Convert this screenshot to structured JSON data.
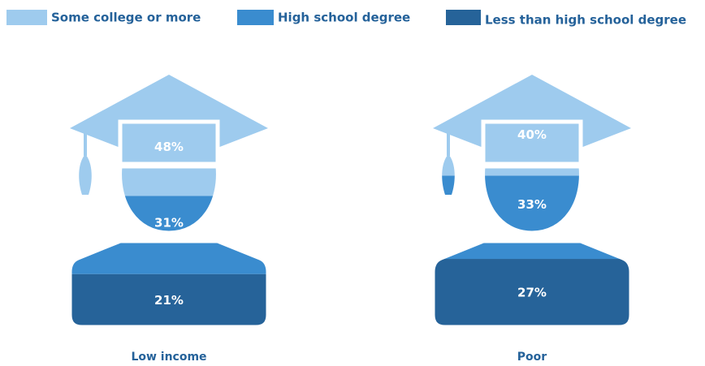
{
  "chart_data": {
    "type": "pictograph",
    "categories": [
      "Low income",
      "Poor"
    ],
    "series": [
      {
        "name": "Some college or more",
        "color": "#9ecbee",
        "values": [
          48,
          40
        ],
        "value_labels": [
          "48%",
          "40%"
        ]
      },
      {
        "name": "High school degree",
        "color": "#3a8ccf",
        "values": [
          31,
          33
        ],
        "value_labels": [
          "31%",
          "33%"
        ]
      },
      {
        "name": "Less than high school degree",
        "color": "#266399",
        "values": [
          21,
          27
        ],
        "value_labels": [
          "21%",
          "27%"
        ]
      }
    ]
  }
}
